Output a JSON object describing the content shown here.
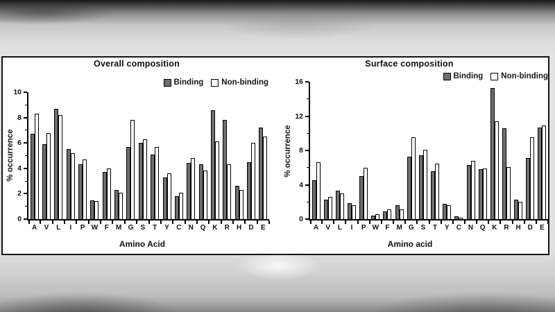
{
  "figure": {
    "panel_bg": "#ffffff",
    "border_color": "#141414",
    "axis_color": "#000000",
    "series_colors": {
      "binding": "#6e6e6e",
      "nonbinding": "#ffffff"
    }
  },
  "chart_data": [
    {
      "type": "bar",
      "title": "Overall composition",
      "xlabel": "Amino Acid",
      "ylabel": "% occurrence",
      "ylim": [
        0,
        10
      ],
      "yticks": [
        0,
        2,
        4,
        6,
        8,
        10
      ],
      "grid": false,
      "legend_position": "top-right",
      "categories": [
        "A",
        "V",
        "L",
        "I",
        "P",
        "W",
        "F",
        "M",
        "G",
        "S",
        "T",
        "Y",
        "C",
        "N",
        "Q",
        "K",
        "R",
        "H",
        "D",
        "E"
      ],
      "series": [
        {
          "name": "Binding",
          "values": [
            6.7,
            5.9,
            8.7,
            5.5,
            4.3,
            1.5,
            3.7,
            2.3,
            5.7,
            6.0,
            5.1,
            3.3,
            1.8,
            4.4,
            4.3,
            8.6,
            7.8,
            2.6,
            4.5,
            7.2
          ]
        },
        {
          "name": "Non-binding",
          "values": [
            8.3,
            6.8,
            8.2,
            5.2,
            4.7,
            1.4,
            4.0,
            2.1,
            7.8,
            6.3,
            5.7,
            3.6,
            2.1,
            4.8,
            3.8,
            6.1,
            4.3,
            2.3,
            6.0,
            6.5
          ]
        }
      ]
    },
    {
      "type": "bar",
      "title": "Surface composition",
      "xlabel": "Amino acid",
      "ylabel": "% occurrence",
      "ylim": [
        0,
        16
      ],
      "yticks": [
        0,
        4,
        8,
        12,
        16
      ],
      "grid": false,
      "legend_position": "top-right",
      "categories": [
        "A",
        "V",
        "L",
        "I",
        "P",
        "W",
        "F",
        "M",
        "G",
        "S",
        "T",
        "Y",
        "C",
        "N",
        "Q",
        "K",
        "R",
        "H",
        "D",
        "E"
      ],
      "series": [
        {
          "name": "Binding",
          "values": [
            4.5,
            2.3,
            3.3,
            1.9,
            5.0,
            0.4,
            0.9,
            1.6,
            7.3,
            7.4,
            5.6,
            1.8,
            0.3,
            6.3,
            5.8,
            15.3,
            10.6,
            2.3,
            7.1,
            10.7
          ]
        },
        {
          "name": "Non-binding",
          "values": [
            6.6,
            2.6,
            3.0,
            1.6,
            6.0,
            0.6,
            1.1,
            1.1,
            9.5,
            8.1,
            6.5,
            1.6,
            0.2,
            6.8,
            5.9,
            11.4,
            6.1,
            2.0,
            9.5,
            10.9
          ]
        }
      ]
    }
  ]
}
